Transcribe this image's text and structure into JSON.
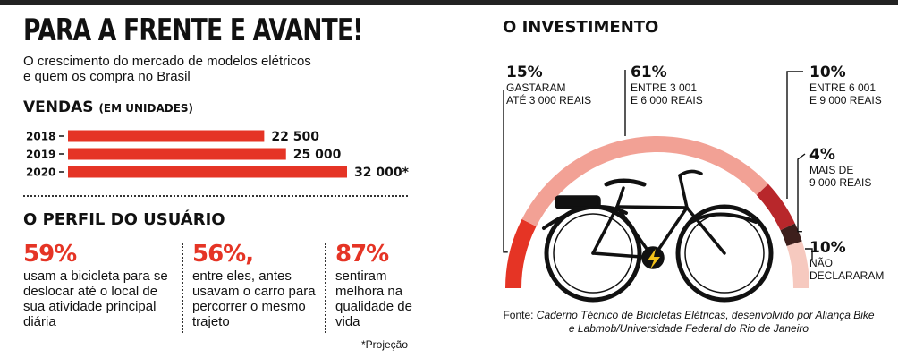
{
  "header": {
    "title": "PARA A FRENTE E AVANTE!",
    "subtitle": "O crescimento do mercado de modelos elétricos e quem os compra no Brasil"
  },
  "vendas": {
    "title": "VENDAS",
    "unit": "(EM UNIDADES)"
  },
  "note": "*Projeção",
  "perfil": {
    "title": "O PERFIL DO USUÁRIO",
    "stats": [
      {
        "pct": "59%",
        "text": "usam a bicicleta para se deslocar até o local de sua atividade principal diária"
      },
      {
        "pct": "56%,",
        "text": "entre eles, antes usavam o carro para percorrer o mesmo trajeto"
      },
      {
        "pct": "87%",
        "text": "sentiram melhora na qualidade de vida"
      }
    ]
  },
  "investimento": {
    "title": "O INVESTIMENTO",
    "source_prefix": "Fonte: ",
    "source": "Caderno Técnico de Bicicletas Elétricas, desenvolvido por Aliança Bike e Labmob/Universidade Federal do Rio de Janeiro"
  },
  "chart_data": [
    {
      "type": "bar",
      "title": "VENDAS (EM UNIDADES)",
      "categories": [
        "2018",
        "2019",
        "2020"
      ],
      "values": [
        22500,
        25000,
        32000
      ],
      "value_labels": [
        "22 500",
        "25 000",
        "32 000*"
      ],
      "color": "#e53425",
      "orientation": "horizontal",
      "xlim": [
        0,
        32000
      ]
    },
    {
      "type": "pie",
      "title": "O INVESTIMENTO",
      "style": "semicircle-arc",
      "segments": [
        {
          "value": 15,
          "pct_label": "15%",
          "label": "GASTARAM ATÉ 3 000 REAIS",
          "lines": [
            "GASTARAM",
            "ATÉ 3 000 REAIS"
          ],
          "color": "#e53425"
        },
        {
          "value": 61,
          "pct_label": "61%",
          "label": "ENTRE 3 001 E 6 000 REAIS",
          "lines": [
            "ENTRE 3 001",
            "E 6 000 REAIS"
          ],
          "color": "#f2a195"
        },
        {
          "value": 10,
          "pct_label": "10%",
          "label": "ENTRE 6 001 E 9 000 REAIS",
          "lines": [
            "ENTRE 6 001",
            "E 9 000 REAIS"
          ],
          "color": "#b8272b"
        },
        {
          "value": 4,
          "pct_label": "4%",
          "label": "MAIS DE 9 000 REAIS",
          "lines": [
            "MAIS DE",
            "9 000 REAIS"
          ],
          "color": "#3d1f1c"
        },
        {
          "value": 10,
          "pct_label": "10%",
          "label": "NÃO DECLARARAM",
          "lines": [
            "NÃO",
            "DECLARARAM"
          ],
          "color": "#f6c9bf"
        }
      ]
    }
  ]
}
